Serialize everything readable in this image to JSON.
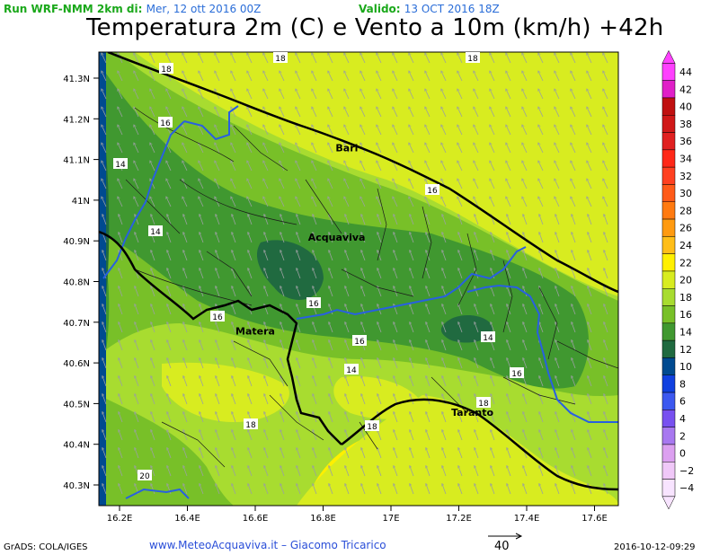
{
  "header": {
    "run_label": "Run WRF-NMM 2km di:",
    "run_date": "Mer, 12 ott 2016 00Z",
    "valid_label": "Valido:",
    "valid_date": "13 OCT 2016 18Z"
  },
  "title": "Temperatura 2m (C) e Vento a 10m (km/h) +42h",
  "axes": {
    "lat_ticks": [
      "41.3N",
      "41.2N",
      "41.1N",
      "41N",
      "40.9N",
      "40.8N",
      "40.7N",
      "40.6N",
      "40.5N",
      "40.4N",
      "40.3N"
    ],
    "lon_ticks": [
      "16.2E",
      "16.4E",
      "16.6E",
      "16.8E",
      "17E",
      "17.2E",
      "17.4E",
      "17.6E"
    ]
  },
  "cities": [
    {
      "name": "Bari",
      "lon": 16.87,
      "lat": 41.12
    },
    {
      "name": "Acquaviva",
      "lon": 16.84,
      "lat": 40.9
    },
    {
      "name": "Matera",
      "lon": 16.6,
      "lat": 40.67
    },
    {
      "name": "Taranto",
      "lon": 17.24,
      "lat": 40.47
    }
  ],
  "contour_labels": [
    "18",
    "18",
    "18",
    "16",
    "16",
    "14",
    "14",
    "16",
    "14",
    "16",
    "16",
    "14",
    "16",
    "18",
    "18",
    "18",
    "20",
    "16"
  ],
  "colorbar": {
    "levels": [
      "44",
      "42",
      "40",
      "38",
      "36",
      "34",
      "32",
      "30",
      "28",
      "26",
      "24",
      "22",
      "20",
      "18",
      "16",
      "14",
      "12",
      "10",
      "8",
      "6",
      "4",
      "2",
      "0",
      "−2",
      "−4"
    ],
    "colors": [
      "#ff40ff",
      "#e020c8",
      "#c01010",
      "#d01818",
      "#e02020",
      "#ff2818",
      "#ff4020",
      "#ff5a18",
      "#ff7a10",
      "#ff9a10",
      "#ffbe18",
      "#fff000",
      "#d8ec20",
      "#a8dc30",
      "#78c028",
      "#409830",
      "#206a40",
      "#004a90",
      "#1040e0",
      "#3c58f0",
      "#7850f0",
      "#a878f0",
      "#dca0f0",
      "#f0c8f8",
      "#f8e4ff"
    ]
  },
  "wind_reference": "40",
  "footer": {
    "left": "GrADS: COLA/IGES",
    "center": "www.MeteoAcquaviva.it  –  Giacomo Tricarico",
    "right": "2016-10-12-09:29"
  }
}
